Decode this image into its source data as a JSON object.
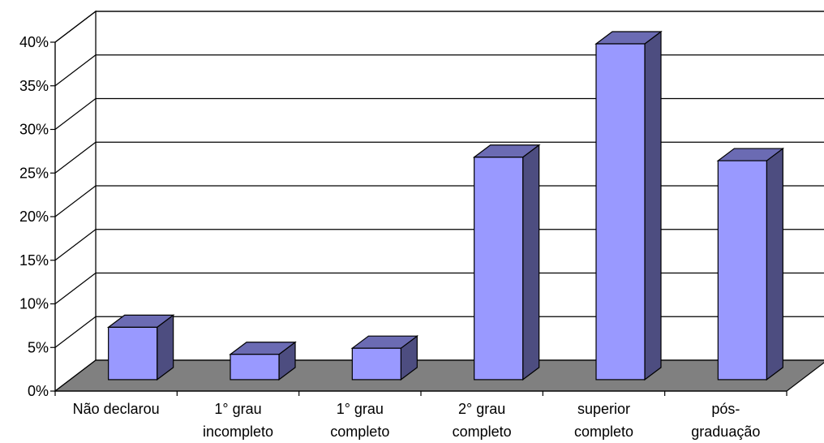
{
  "chart_data": {
    "type": "bar",
    "categories": [
      [
        "Não declarou"
      ],
      [
        "1° grau",
        "incompleto"
      ],
      [
        "1° grau",
        "completo"
      ],
      [
        "2° grau",
        "completo"
      ],
      [
        "superior",
        "completo"
      ],
      [
        "pós-",
        "graduação"
      ]
    ],
    "values": [
      6.0,
      2.9,
      3.6,
      25.5,
      38.5,
      25.1
    ],
    "ylim": [
      0,
      40
    ],
    "yticks": [
      "0%",
      "5%",
      "10%",
      "15%",
      "20%",
      "25%",
      "30%",
      "35%",
      "40%"
    ],
    "grid": true,
    "legend": "none",
    "title": "",
    "xlabel": "",
    "ylabel": "",
    "colors": {
      "bar_front": "#9999ff",
      "bar_side": "#4d4d80",
      "bar_top": "#6b6bb3",
      "floor": "#808080",
      "grid": "#000000"
    }
  }
}
